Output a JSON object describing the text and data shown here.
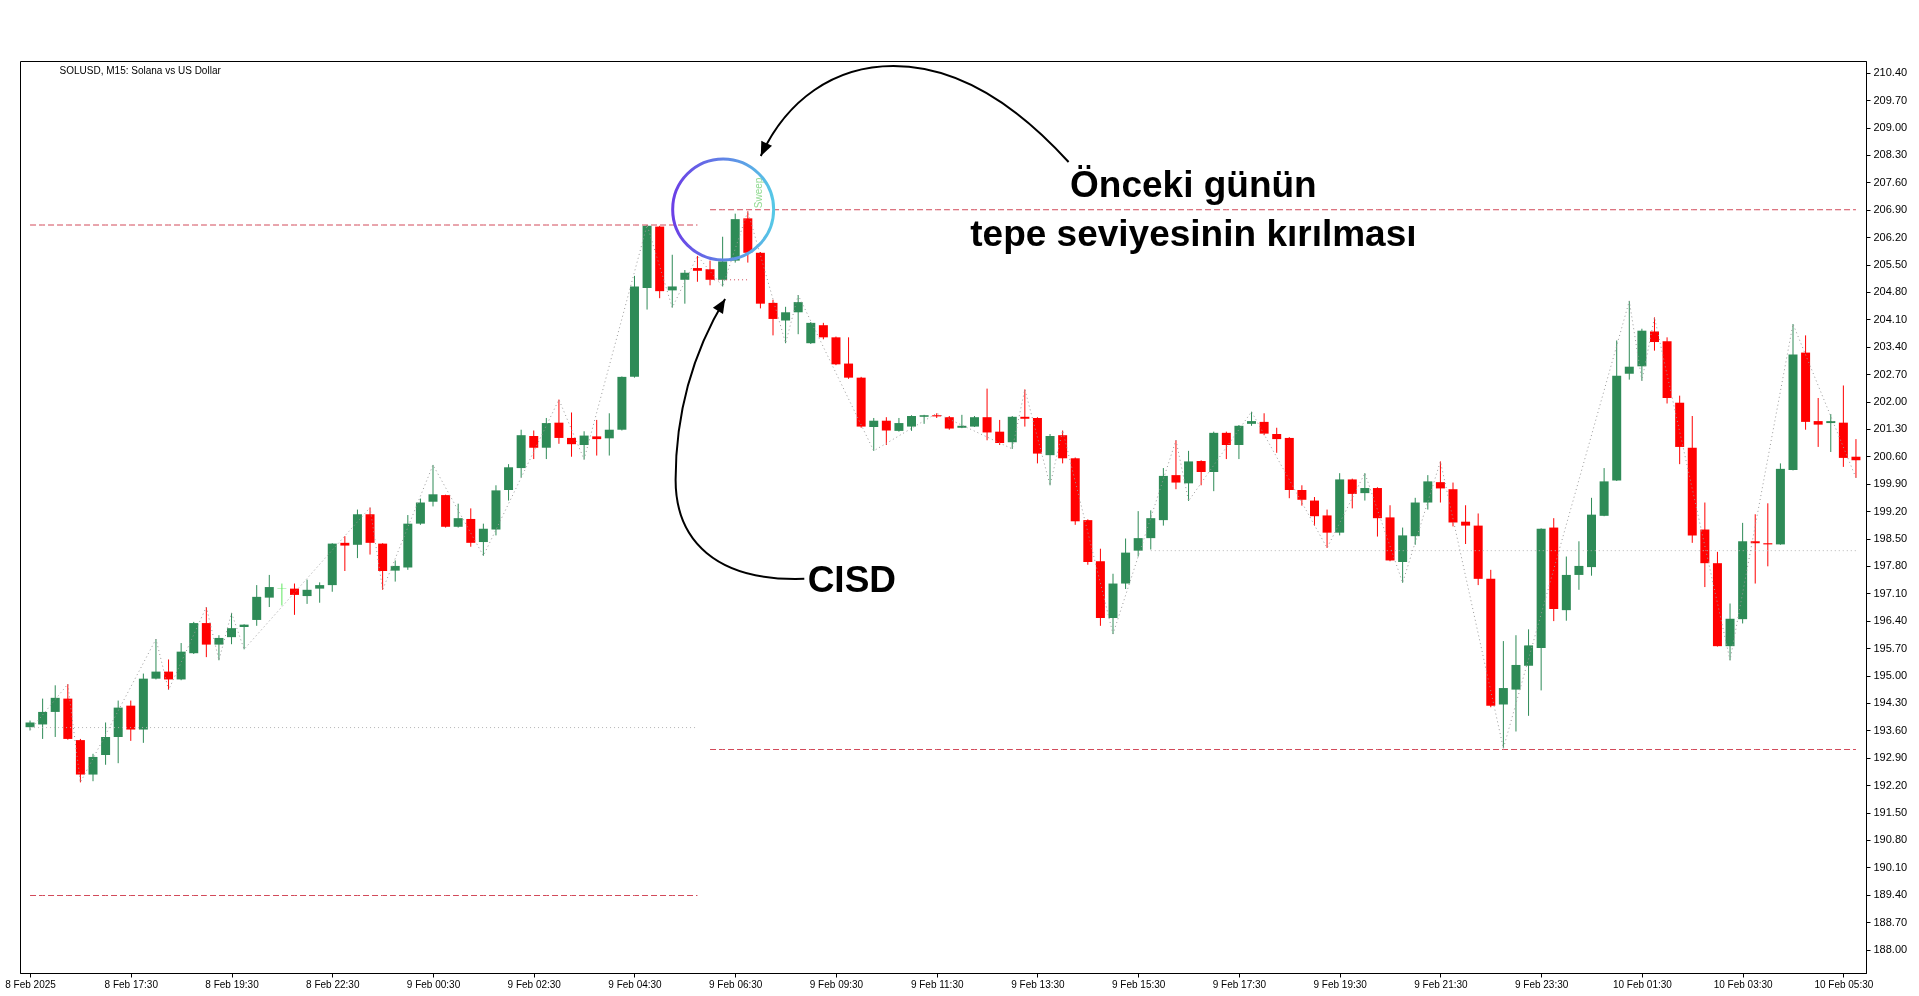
{
  "chart_data": {
    "type": "candlestick",
    "title": "SOLUSD, M15: Solana vs US Dollar",
    "annotations": [
      "Önceki günün\ntepe seviyesinin kırılması",
      "CISD",
      "Sweep"
    ],
    "categories": [
      "8 Feb 2025",
      null,
      null,
      null,
      null,
      null,
      null,
      null,
      "8 Feb 17:30",
      null,
      null,
      null,
      null,
      null,
      null,
      null,
      "8 Feb 19:30",
      null,
      null,
      null,
      null,
      null,
      null,
      null,
      "8 Feb 22:30",
      null,
      null,
      null,
      null,
      null,
      null,
      null,
      "9 Feb 00:30",
      null,
      null,
      null,
      null,
      null,
      null,
      null,
      "9 Feb 02:30",
      null,
      null,
      null,
      null,
      null,
      null,
      null,
      "9 Feb 04:30",
      null,
      null,
      null,
      null,
      null,
      null,
      null,
      "9 Feb 06:30",
      null,
      null,
      null,
      null,
      null,
      null,
      null,
      "9 Feb 09:30",
      null,
      null,
      null,
      null,
      null,
      null,
      null,
      "9 Feb 11:30",
      null,
      null,
      null,
      null,
      null,
      null,
      null,
      "9 Feb 13:30",
      null,
      null,
      null,
      null,
      null,
      null,
      null,
      "9 Feb 15:30",
      null,
      null,
      null,
      null,
      null,
      null,
      null,
      "9 Feb 17:30",
      null,
      null,
      null,
      null,
      null,
      null,
      null,
      "9 Feb 19:30",
      null,
      null,
      null,
      null,
      null,
      null,
      null,
      "9 Feb 21:30",
      null,
      null,
      null,
      null,
      null,
      null,
      null,
      "9 Feb 23:30",
      null,
      null,
      null,
      null,
      null,
      null,
      null,
      "10 Feb 01:30",
      null,
      null,
      null,
      null,
      null,
      null,
      null,
      "10 Feb 03:30",
      null,
      null,
      null,
      null,
      null,
      null,
      null,
      "10 Feb 05:30",
      null
    ],
    "ohlc": [
      [
        193.68,
        193.85,
        193.6,
        193.8
      ],
      [
        193.75,
        194.41,
        193.38,
        194.07
      ],
      [
        194.07,
        194.75,
        193.43,
        194.43
      ],
      [
        194.41,
        194.78,
        193.36,
        193.38
      ],
      [
        193.35,
        193.38,
        192.27,
        192.47
      ],
      [
        192.47,
        193.0,
        192.3,
        192.92
      ],
      [
        192.97,
        193.8,
        192.72,
        193.43
      ],
      [
        193.43,
        194.36,
        192.76,
        194.18
      ],
      [
        194.23,
        194.36,
        193.33,
        193.62
      ],
      [
        193.62,
        195.05,
        193.28,
        194.92
      ],
      [
        194.92,
        195.93,
        194.9,
        195.1
      ],
      [
        195.1,
        195.41,
        194.63,
        194.9
      ],
      [
        194.9,
        195.83,
        194.88,
        195.61
      ],
      [
        195.57,
        196.37,
        195.55,
        196.34
      ],
      [
        196.34,
        196.75,
        195.47,
        195.79
      ],
      [
        195.79,
        196.03,
        195.39,
        195.96
      ],
      [
        195.98,
        196.6,
        195.8,
        196.21
      ],
      [
        196.24,
        196.31,
        195.67,
        196.3
      ],
      [
        196.42,
        197.31,
        196.27,
        197.01
      ],
      [
        196.99,
        197.57,
        196.75,
        197.26
      ],
      [
        197.22,
        197.35,
        196.79,
        197.23
      ],
      [
        197.22,
        197.35,
        196.55,
        197.06
      ],
      [
        197.03,
        197.45,
        196.83,
        197.19
      ],
      [
        197.22,
        197.38,
        196.86,
        197.31
      ],
      [
        197.31,
        198.38,
        197.14,
        198.37
      ],
      [
        198.39,
        198.56,
        197.67,
        198.32
      ],
      [
        198.34,
        199.24,
        198.0,
        199.12
      ],
      [
        199.12,
        199.29,
        198.09,
        198.39
      ],
      [
        198.37,
        198.38,
        197.19,
        197.67
      ],
      [
        197.68,
        197.94,
        197.4,
        197.8
      ],
      [
        197.76,
        199.1,
        197.7,
        198.88
      ],
      [
        198.88,
        199.52,
        198.85,
        199.42
      ],
      [
        199.44,
        200.38,
        199.32,
        199.63
      ],
      [
        199.61,
        199.62,
        198.78,
        198.8
      ],
      [
        198.8,
        199.39,
        198.78,
        199.02
      ],
      [
        199.0,
        199.27,
        198.29,
        198.39
      ],
      [
        198.41,
        198.88,
        198.06,
        198.75
      ],
      [
        198.73,
        199.86,
        198.58,
        199.73
      ],
      [
        199.74,
        200.4,
        199.47,
        200.32
      ],
      [
        200.3,
        201.28,
        200.06,
        201.14
      ],
      [
        201.12,
        201.26,
        200.53,
        200.82
      ],
      [
        200.82,
        201.58,
        200.53,
        201.45
      ],
      [
        201.46,
        202.05,
        200.92,
        201.07
      ],
      [
        201.07,
        201.72,
        200.59,
        200.91
      ],
      [
        200.89,
        201.24,
        200.52,
        201.13
      ],
      [
        201.11,
        201.53,
        200.62,
        201.04
      ],
      [
        201.06,
        201.7,
        200.62,
        201.28
      ],
      [
        201.28,
        202.64,
        201.26,
        202.63
      ],
      [
        202.63,
        205.21,
        202.61,
        204.94
      ],
      [
        204.9,
        206.51,
        204.35,
        206.49
      ],
      [
        206.47,
        206.49,
        204.64,
        204.82
      ],
      [
        204.84,
        205.75,
        204.4,
        204.94
      ],
      [
        205.11,
        205.36,
        204.5,
        205.29
      ],
      [
        205.41,
        205.72,
        205.06,
        205.34
      ],
      [
        205.38,
        205.6,
        204.97,
        205.11
      ],
      [
        205.11,
        206.21,
        204.94,
        205.58
      ],
      [
        205.6,
        206.8,
        205.55,
        206.66
      ],
      [
        206.68,
        206.86,
        205.55,
        205.8
      ],
      [
        205.8,
        205.82,
        204.38,
        204.5
      ],
      [
        204.52,
        204.6,
        203.69,
        204.11
      ],
      [
        204.07,
        204.42,
        203.49,
        204.28
      ],
      [
        204.28,
        204.72,
        203.72,
        204.54
      ],
      [
        203.49,
        204.03,
        203.47,
        204.01
      ],
      [
        203.95,
        204.01,
        203.59,
        203.64
      ],
      [
        203.64,
        203.66,
        202.93,
        202.95
      ],
      [
        202.97,
        203.64,
        202.58,
        202.61
      ],
      [
        202.61,
        202.63,
        201.33,
        201.36
      ],
      [
        201.35,
        201.58,
        200.74,
        201.51
      ],
      [
        201.51,
        201.6,
        200.89,
        201.26
      ],
      [
        201.25,
        201.58,
        201.23,
        201.45
      ],
      [
        201.36,
        201.65,
        201.25,
        201.63
      ],
      [
        201.61,
        201.66,
        201.43,
        201.65
      ],
      [
        201.65,
        201.7,
        201.58,
        201.62
      ],
      [
        201.6,
        201.63,
        201.28,
        201.31
      ],
      [
        201.33,
        201.66,
        201.32,
        201.38
      ],
      [
        201.36,
        201.63,
        201.35,
        201.6
      ],
      [
        201.6,
        202.33,
        201.01,
        201.21
      ],
      [
        201.23,
        201.53,
        200.89,
        200.94
      ],
      [
        200.96,
        201.63,
        200.79,
        201.61
      ],
      [
        201.61,
        202.31,
        201.36,
        201.56
      ],
      [
        201.58,
        201.6,
        200.42,
        200.67
      ],
      [
        200.63,
        201.17,
        199.86,
        201.12
      ],
      [
        201.14,
        201.26,
        200.42,
        200.55
      ],
      [
        200.55,
        200.57,
        198.85,
        198.94
      ],
      [
        198.97,
        198.99,
        197.83,
        197.9
      ],
      [
        197.92,
        198.24,
        196.27,
        196.47
      ],
      [
        196.47,
        197.6,
        196.06,
        197.35
      ],
      [
        197.35,
        198.5,
        197.21,
        198.14
      ],
      [
        198.19,
        199.2,
        198.04,
        198.51
      ],
      [
        198.51,
        199.22,
        198.22,
        199.02
      ],
      [
        198.97,
        200.3,
        198.83,
        200.1
      ],
      [
        200.12,
        201.01,
        199.76,
        199.93
      ],
      [
        199.91,
        200.74,
        199.46,
        200.47
      ],
      [
        200.48,
        200.5,
        199.86,
        200.2
      ],
      [
        200.2,
        201.23,
        199.71,
        201.2
      ],
      [
        201.2,
        201.23,
        200.53,
        200.89
      ],
      [
        200.89,
        201.4,
        200.53,
        201.38
      ],
      [
        201.43,
        201.74,
        201.38,
        201.5
      ],
      [
        201.48,
        201.7,
        201.14,
        201.18
      ],
      [
        201.17,
        201.33,
        200.69,
        201.04
      ],
      [
        201.07,
        201.09,
        199.53,
        199.74
      ],
      [
        199.74,
        199.86,
        199.34,
        199.49
      ],
      [
        199.47,
        199.56,
        198.83,
        199.07
      ],
      [
        199.09,
        199.24,
        198.26,
        198.65
      ],
      [
        198.65,
        200.17,
        198.58,
        200.01
      ],
      [
        200.01,
        200.03,
        199.27,
        199.64
      ],
      [
        199.66,
        200.17,
        199.47,
        199.79
      ],
      [
        199.79,
        199.81,
        198.55,
        199.02
      ],
      [
        199.04,
        199.35,
        197.92,
        197.94
      ],
      [
        197.9,
        198.78,
        197.37,
        198.58
      ],
      [
        198.56,
        199.54,
        198.34,
        199.42
      ],
      [
        199.42,
        200.12,
        199.24,
        199.96
      ],
      [
        199.94,
        200.47,
        199.42,
        199.78
      ],
      [
        199.76,
        199.93,
        198.81,
        198.91
      ],
      [
        198.93,
        199.35,
        198.36,
        198.83
      ],
      [
        198.83,
        199.14,
        197.31,
        197.47
      ],
      [
        197.47,
        197.7,
        194.19,
        194.23
      ],
      [
        194.26,
        195.88,
        193.14,
        194.68
      ],
      [
        194.64,
        196.03,
        193.57,
        195.27
      ],
      [
        195.25,
        196.18,
        193.97,
        195.77
      ],
      [
        195.7,
        198.76,
        194.62,
        198.75
      ],
      [
        198.78,
        199.02,
        196.39,
        196.7
      ],
      [
        196.67,
        198.04,
        196.4,
        197.57
      ],
      [
        197.57,
        198.43,
        197.19,
        197.8
      ],
      [
        197.77,
        199.54,
        197.55,
        199.11
      ],
      [
        199.08,
        200.3,
        199.07,
        199.96
      ],
      [
        199.98,
        203.56,
        199.97,
        202.66
      ],
      [
        202.71,
        204.57,
        202.56,
        202.89
      ],
      [
        202.9,
        203.86,
        202.53,
        203.81
      ],
      [
        203.79,
        204.15,
        203.3,
        203.52
      ],
      [
        203.54,
        203.64,
        201.95,
        202.09
      ],
      [
        201.97,
        202.15,
        200.4,
        200.84
      ],
      [
        200.82,
        201.63,
        198.39,
        198.58
      ],
      [
        198.73,
        199.42,
        197.26,
        197.87
      ],
      [
        197.87,
        198.16,
        195.74,
        195.75
      ],
      [
        195.75,
        196.84,
        195.39,
        196.45
      ],
      [
        196.44,
        198.9,
        196.33,
        198.43
      ],
      [
        198.43,
        199.12,
        197.35,
        198.38
      ],
      [
        198.38,
        199.4,
        197.79,
        198.35
      ],
      [
        198.35,
        200.42,
        198.34,
        200.28
      ],
      [
        200.25,
        203.98,
        200.24,
        203.2
      ],
      [
        203.25,
        203.69,
        201.28,
        201.48
      ],
      [
        201.5,
        202.09,
        200.84,
        201.41
      ],
      [
        201.45,
        201.68,
        200.71,
        201.5
      ],
      [
        201.46,
        202.41,
        200.33,
        200.56
      ],
      [
        200.59,
        201.04,
        200.05,
        200.5
      ]
    ],
    "colors": [
      "#2e8b57",
      "#2e8b57",
      "#2e8b57",
      "#ff0000",
      "#ff0000",
      "#2e8b57",
      "#2e8b57",
      "#2e8b57",
      "#ff0000",
      "#2e8b57",
      "#2e8b57",
      "#ff0000",
      "#2e8b57",
      "#2e8b57",
      "#ff0000",
      "#2e8b57",
      "#2e8b57",
      "#2e8b57",
      "#2e8b57",
      "#2e8b57",
      "#5ee65e",
      "#ff0000",
      "#2e8b57",
      "#2e8b57",
      "#2e8b57",
      "#ff0000",
      "#2e8b57",
      "#ff0000",
      "#ff0000",
      "#2e8b57",
      "#2e8b57",
      "#2e8b57",
      "#2e8b57",
      "#ff0000",
      "#2e8b57",
      "#ff0000",
      "#2e8b57",
      "#2e8b57",
      "#2e8b57",
      "#2e8b57",
      "#ff0000",
      "#2e8b57",
      "#ff0000",
      "#ff0000",
      "#2e8b57",
      "#ff0000",
      "#2e8b57",
      "#2e8b57",
      "#2e8b57",
      "#2e8b57",
      "#ff0000",
      "#2e8b57",
      "#2e8b57",
      "#ff0000",
      "#ff0000",
      "#2e8b57",
      "#2e8b57",
      "#ff0000",
      "#ff0000",
      "#ff0000",
      "#2e8b57",
      "#2e8b57",
      "#2e8b57",
      "#ff0000",
      "#ff0000",
      "#ff0000",
      "#ff0000",
      "#2e8b57",
      "#ff0000",
      "#2e8b57",
      "#2e8b57",
      "#2e8b57",
      "#ff0000",
      "#ff0000",
      "#2e8b57",
      "#2e8b57",
      "#ff0000",
      "#ff0000",
      "#2e8b57",
      "#ff0000",
      "#ff0000",
      "#2e8b57",
      "#ff0000",
      "#ff0000",
      "#ff0000",
      "#ff0000",
      "#2e8b57",
      "#2e8b57",
      "#2e8b57",
      "#2e8b57",
      "#2e8b57",
      "#ff0000",
      "#2e8b57",
      "#ff0000",
      "#2e8b57",
      "#ff0000",
      "#2e8b57",
      "#2e8b57",
      "#ff0000",
      "#ff0000",
      "#ff0000",
      "#ff0000",
      "#ff0000",
      "#ff0000",
      "#2e8b57",
      "#ff0000",
      "#2e8b57",
      "#ff0000",
      "#ff0000",
      "#2e8b57",
      "#2e8b57",
      "#2e8b57",
      "#ff0000",
      "#ff0000",
      "#ff0000",
      "#ff0000",
      "#ff0000",
      "#2e8b57",
      "#2e8b57",
      "#2e8b57",
      "#2e8b57",
      "#ff0000",
      "#2e8b57",
      "#2e8b57",
      "#2e8b57",
      "#2e8b57",
      "#2e8b57",
      "#2e8b57",
      "#2e8b57",
      "#ff0000",
      "#ff0000",
      "#ff0000",
      "#ff0000",
      "#ff0000",
      "#ff0000",
      "#2e8b57",
      "#2e8b57",
      "#ff0000",
      "#ff0000",
      "#2e8b57",
      "#2e8b57",
      "#ff0000",
      "#ff0000",
      "#2e8b57",
      "#ff0000",
      "#ff0000"
    ],
    "series": [
      {
        "type": "line",
        "color": "#d24a5a",
        "line_style": "dashed",
        "values": [
          206.51,
          206.51,
          206.51,
          206.51,
          206.51,
          206.51,
          206.51,
          206.51,
          206.51,
          206.51,
          206.51,
          206.51,
          206.51,
          206.51,
          206.51,
          206.51,
          206.51,
          206.51,
          206.51,
          206.51,
          206.51,
          206.51,
          206.51,
          206.51,
          206.51,
          206.51,
          206.51,
          206.51,
          206.51,
          206.51,
          206.51,
          206.51,
          206.51,
          206.51,
          206.51,
          206.51,
          206.51,
          206.51,
          206.51,
          206.51,
          206.51,
          206.51,
          206.51,
          206.51,
          206.51,
          206.51,
          206.51,
          206.51,
          206.51,
          206.51,
          206.51,
          206.51,
          206.51,
          206.51,
          null,
          null,
          null,
          null,
          null,
          null,
          null,
          null,
          null,
          null,
          null,
          null,
          null,
          null,
          null,
          null,
          null,
          null,
          null,
          null,
          null,
          null,
          null,
          null,
          null,
          null,
          null,
          null,
          null,
          null,
          null,
          null,
          null,
          null,
          null,
          null,
          null,
          null,
          null,
          null,
          null,
          null,
          null,
          null,
          null,
          null,
          null,
          null,
          null,
          null,
          null,
          null,
          null,
          null,
          null,
          null,
          null,
          null,
          null,
          null,
          null,
          null,
          null,
          null,
          null,
          null,
          null,
          null,
          null,
          null,
          null,
          null,
          null,
          null,
          null,
          null,
          null,
          null,
          null,
          null,
          null,
          null,
          null,
          null,
          null,
          null,
          null,
          null,
          null,
          null,
          null,
          null
        ]
      },
      {
        "type": "line",
        "color": "#d24a5a",
        "line_style": "dashed",
        "values": [
          189.38,
          189.38,
          189.38,
          189.38,
          189.38,
          189.38,
          189.38,
          189.38,
          189.38,
          189.38,
          189.38,
          189.38,
          189.38,
          189.38,
          189.38,
          189.38,
          189.38,
          189.38,
          189.38,
          189.38,
          189.38,
          189.38,
          189.38,
          189.38,
          189.38,
          189.38,
          189.38,
          189.38,
          189.38,
          189.38,
          189.38,
          189.38,
          189.38,
          189.38,
          189.38,
          189.38,
          189.38,
          189.38,
          189.38,
          189.38,
          189.38,
          189.38,
          189.38,
          189.38,
          189.38,
          189.38,
          189.38,
          189.38,
          189.38,
          189.38,
          189.38,
          189.38,
          189.38,
          189.38,
          null,
          null,
          null,
          null,
          null,
          null,
          null,
          null,
          null,
          null,
          null,
          null,
          null,
          null,
          null,
          null,
          null,
          null,
          null,
          null,
          null,
          null,
          null,
          null,
          null,
          null,
          null,
          null,
          null,
          null,
          null,
          null,
          null,
          null,
          null,
          null,
          null,
          null,
          null,
          null,
          null,
          null,
          null,
          null,
          null,
          null,
          null,
          null,
          null,
          null,
          null,
          null,
          null,
          null,
          null,
          null,
          null,
          null,
          null,
          null,
          null,
          null,
          null,
          null,
          null,
          null,
          null,
          null,
          null,
          null,
          null,
          null,
          null,
          null,
          null,
          null,
          null,
          null,
          null,
          null,
          null,
          null,
          null,
          null,
          null,
          null,
          null,
          null,
          null,
          null,
          null,
          null
        ]
      },
      {
        "type": "line",
        "color": "#b4b4b4",
        "line_style": "dotted",
        "values": [
          193.67,
          193.67,
          193.67,
          193.67,
          193.67,
          193.67,
          193.67,
          193.67,
          193.67,
          193.67,
          193.67,
          193.67,
          193.67,
          193.67,
          193.67,
          193.67,
          193.67,
          193.67,
          193.67,
          193.67,
          193.67,
          193.67,
          193.67,
          193.67,
          193.67,
          193.67,
          193.67,
          193.67,
          193.67,
          193.67,
          193.67,
          193.67,
          193.67,
          193.67,
          193.67,
          193.67,
          193.67,
          193.67,
          193.67,
          193.67,
          193.67,
          193.67,
          193.67,
          193.67,
          193.67,
          193.67,
          193.67,
          193.67,
          193.67,
          193.67,
          193.67,
          193.67,
          193.67,
          193.67,
          null,
          null,
          null,
          null,
          null,
          null,
          null,
          null,
          null,
          null,
          null,
          null,
          null,
          null,
          null,
          null,
          null,
          null,
          null,
          null,
          null,
          null,
          null,
          null,
          null,
          null,
          null,
          null,
          null,
          null,
          null,
          null,
          null,
          null,
          null,
          null,
          null,
          null,
          null,
          null,
          null,
          null,
          null,
          null,
          null,
          null,
          null,
          null,
          null,
          null,
          null,
          null,
          null,
          null,
          null,
          null,
          null,
          null,
          null,
          null,
          null,
          null,
          null,
          null,
          null,
          null,
          null,
          null,
          null,
          null,
          null,
          null,
          null,
          null,
          null,
          null,
          null,
          null,
          null,
          null,
          null,
          null,
          null,
          null,
          null,
          null,
          null,
          null,
          null,
          null,
          null,
          null
        ]
      },
      {
        "type": "line",
        "color": "#d24a5a",
        "line_style": "dashed",
        "values": [
          null,
          null,
          null,
          null,
          null,
          null,
          null,
          null,
          null,
          null,
          null,
          null,
          null,
          null,
          null,
          null,
          null,
          null,
          null,
          null,
          null,
          null,
          null,
          null,
          null,
          null,
          null,
          null,
          null,
          null,
          null,
          null,
          null,
          null,
          null,
          null,
          null,
          null,
          null,
          null,
          null,
          null,
          null,
          null,
          null,
          null,
          null,
          null,
          null,
          null,
          null,
          null,
          null,
          null,
          206.9,
          206.9,
          206.9,
          206.9,
          206.9,
          206.9,
          206.9,
          206.9,
          206.9,
          206.9,
          206.9,
          206.9,
          206.9,
          206.9,
          206.9,
          206.9,
          206.9,
          206.9,
          206.9,
          206.9,
          206.9,
          206.9,
          206.9,
          206.9,
          206.9,
          206.9,
          206.9,
          206.9,
          206.9,
          206.9,
          206.9,
          206.9,
          206.9,
          206.9,
          206.9,
          206.9,
          206.9,
          206.9,
          206.9,
          206.9,
          206.9,
          206.9,
          206.9,
          206.9,
          206.9,
          206.9,
          206.9,
          206.9,
          206.9,
          206.9,
          206.9,
          206.9,
          206.9,
          206.9,
          206.9,
          206.9,
          206.9,
          206.9,
          206.9,
          206.9,
          206.9,
          206.9,
          206.9,
          206.9,
          206.9,
          206.9,
          206.9,
          206.9,
          206.9,
          206.9,
          206.9,
          206.9,
          206.9,
          206.9,
          206.9,
          206.9,
          206.9,
          206.9,
          206.9,
          206.9,
          206.9,
          206.9,
          206.9,
          206.9,
          206.9,
          206.9,
          206.9,
          206.9,
          206.9,
          206.9,
          206.9,
          206.9
        ]
      },
      {
        "type": "line",
        "color": "#d24a5a",
        "line_style": "dashed",
        "values": [
          null,
          null,
          null,
          null,
          null,
          null,
          null,
          null,
          null,
          null,
          null,
          null,
          null,
          null,
          null,
          null,
          null,
          null,
          null,
          null,
          null,
          null,
          null,
          null,
          null,
          null,
          null,
          null,
          null,
          null,
          null,
          null,
          null,
          null,
          null,
          null,
          null,
          null,
          null,
          null,
          null,
          null,
          null,
          null,
          null,
          null,
          null,
          null,
          null,
          null,
          null,
          null,
          null,
          null,
          193.11,
          193.11,
          193.11,
          193.11,
          193.11,
          193.11,
          193.11,
          193.11,
          193.11,
          193.11,
          193.11,
          193.11,
          193.11,
          193.11,
          193.11,
          193.11,
          193.11,
          193.11,
          193.11,
          193.11,
          193.11,
          193.11,
          193.11,
          193.11,
          193.11,
          193.11,
          193.11,
          193.11,
          193.11,
          193.11,
          193.11,
          193.11,
          193.11,
          193.11,
          193.11,
          193.11,
          193.11,
          193.11,
          193.11,
          193.11,
          193.11,
          193.11,
          193.11,
          193.11,
          193.11,
          193.11,
          193.11,
          193.11,
          193.11,
          193.11,
          193.11,
          193.11,
          193.11,
          193.11,
          193.11,
          193.11,
          193.11,
          193.11,
          193.11,
          193.11,
          193.11,
          193.11,
          193.11,
          193.11,
          193.11,
          193.11,
          193.11,
          193.11,
          193.11,
          193.11,
          193.11,
          193.11,
          193.11,
          193.11,
          193.11,
          193.11,
          193.11,
          193.11,
          193.11,
          193.11,
          193.11,
          193.11,
          193.11,
          193.11,
          193.11,
          193.11,
          193.11,
          193.11,
          193.11,
          193.11,
          193.11,
          193.11
        ]
      },
      {
        "type": "line",
        "color": "#b4b4b4",
        "line_style": "dotted",
        "values": [
          null,
          null,
          null,
          null,
          null,
          null,
          null,
          null,
          null,
          null,
          null,
          null,
          null,
          null,
          null,
          null,
          null,
          null,
          null,
          null,
          null,
          null,
          null,
          null,
          null,
          null,
          null,
          null,
          null,
          null,
          null,
          null,
          null,
          null,
          null,
          null,
          null,
          null,
          null,
          null,
          null,
          null,
          null,
          null,
          null,
          null,
          null,
          null,
          null,
          null,
          null,
          null,
          null,
          null,
          null,
          null,
          null,
          null,
          null,
          null,
          null,
          null,
          null,
          null,
          null,
          null,
          null,
          null,
          null,
          null,
          null,
          null,
          null,
          null,
          null,
          null,
          null,
          null,
          null,
          null,
          null,
          null,
          null,
          null,
          null,
          null,
          null,
          null,
          null,
          198.19,
          198.19,
          198.19,
          198.19,
          198.19,
          198.19,
          198.19,
          198.19,
          198.19,
          198.19,
          198.19,
          198.19,
          198.19,
          198.19,
          198.19,
          198.19,
          198.19,
          198.19,
          198.19,
          198.19,
          198.19,
          198.19,
          198.19,
          198.19,
          198.19,
          198.19,
          198.19,
          198.19,
          198.19,
          198.19,
          198.19,
          198.19,
          198.19,
          198.19,
          198.19,
          198.19,
          198.19,
          198.19,
          198.19,
          198.19,
          198.19,
          198.19,
          198.19,
          198.19,
          198.19,
          198.19,
          198.19,
          198.19,
          198.19,
          198.19,
          198.19,
          198.19,
          198.19,
          198.19,
          198.19,
          198.19,
          198.19
        ]
      },
      {
        "type": "line",
        "color": "#d24a5a",
        "line_style": "dotted",
        "values": [
          null,
          null,
          null,
          null,
          null,
          null,
          null,
          null,
          null,
          null,
          null,
          null,
          null,
          null,
          null,
          null,
          null,
          null,
          null,
          null,
          null,
          null,
          null,
          null,
          null,
          null,
          null,
          null,
          null,
          null,
          null,
          null,
          null,
          null,
          null,
          null,
          null,
          null,
          null,
          null,
          null,
          null,
          null,
          null,
          null,
          null,
          null,
          null,
          null,
          null,
          null,
          null,
          null,
          null,
          205.11,
          205.11,
          205.11,
          205.11,
          null,
          null,
          null,
          null,
          null,
          null,
          null,
          null,
          null,
          null,
          null,
          null,
          null,
          null,
          null,
          null,
          null,
          null,
          null,
          null,
          null,
          null,
          null,
          null,
          null,
          null,
          null,
          null,
          null,
          null,
          null,
          null,
          null,
          null,
          null,
          null,
          null,
          null,
          null,
          null,
          null,
          null,
          null,
          null,
          null,
          null,
          null,
          null,
          null,
          null,
          null,
          null,
          null,
          null,
          null,
          null,
          null,
          null,
          null,
          null,
          null,
          null,
          null,
          null,
          null,
          null,
          null,
          null,
          null,
          null,
          null,
          null,
          null,
          null,
          null,
          null,
          null,
          null,
          null,
          null,
          null,
          null,
          null,
          null,
          null,
          null,
          null,
          null
        ]
      },
      {
        "type": "line",
        "color": "#9a9a9a",
        "line_style": "dotted",
        "values": [
          193.6,
          null,
          null,
          194.78,
          192.27,
          null,
          null,
          null,
          null,
          null,
          195.93,
          194.63,
          null,
          null,
          196.75,
          195.39,
          196.6,
          195.67,
          null,
          null,
          null,
          null,
          null,
          null,
          null,
          null,
          null,
          199.29,
          197.19,
          null,
          null,
          null,
          200.38,
          null,
          null,
          null,
          198.06,
          null,
          null,
          null,
          null,
          null,
          202.05,
          null,
          200.52,
          null,
          null,
          null,
          null,
          206.51,
          null,
          204.4,
          null,
          205.72,
          null,
          204.94,
          null,
          206.86,
          null,
          null,
          203.49,
          204.72,
          null,
          null,
          null,
          null,
          null,
          200.74,
          null,
          null,
          null,
          null,
          201.7,
          null,
          null,
          null,
          null,
          null,
          200.79,
          202.31,
          null,
          199.86,
          201.26,
          null,
          null,
          null,
          196.06,
          null,
          null,
          null,
          null,
          201.01,
          199.46,
          null,
          null,
          null,
          null,
          201.74,
          null,
          null,
          null,
          null,
          null,
          198.26,
          null,
          null,
          200.17,
          null,
          null,
          197.37,
          null,
          null,
          200.47,
          null,
          null,
          null,
          null,
          193.14,
          null,
          null,
          null,
          null,
          null,
          null,
          null,
          null,
          null,
          204.57,
          202.53,
          204.15,
          null,
          null,
          null,
          null,
          null,
          195.39,
          null,
          null,
          null,
          null,
          203.98,
          null,
          null,
          null,
          null,
          200.05
        ]
      }
    ],
    "ylim": [
      187.4,
      210.7
    ],
    "yticks": [
      {
        "value": 188,
        "label": "188.00"
      },
      {
        "value": 188.7,
        "label": "188.70"
      },
      {
        "value": 189.4,
        "label": "189.40"
      },
      {
        "value": 190.1,
        "label": "190.10"
      },
      {
        "value": 190.8,
        "label": "190.80"
      },
      {
        "value": 191.5,
        "label": "191.50"
      },
      {
        "value": 192.2,
        "label": "192.20"
      },
      {
        "value": 192.9,
        "label": "192.90"
      },
      {
        "value": 193.6,
        "label": "193.60"
      },
      {
        "value": 194.3,
        "label": "194.30"
      },
      {
        "value": 195,
        "label": "195.00"
      },
      {
        "value": 195.7,
        "label": "195.70"
      },
      {
        "value": 196.4,
        "label": "196.40"
      },
      {
        "value": 197.1,
        "label": "197.10"
      },
      {
        "value": 197.8,
        "label": "197.80"
      },
      {
        "value": 198.5,
        "label": "198.50"
      },
      {
        "value": 199.2,
        "label": "199.20"
      },
      {
        "value": 199.9,
        "label": "199.90"
      },
      {
        "value": 200.6,
        "label": "200.60"
      },
      {
        "value": 201.3,
        "label": "201.30"
      },
      {
        "value": 202,
        "label": "202.00"
      },
      {
        "value": 202.7,
        "label": "202.70"
      },
      {
        "value": 203.4,
        "label": "203.40"
      },
      {
        "value": 204.1,
        "label": "204.10"
      },
      {
        "value": 204.8,
        "label": "204.80"
      },
      {
        "value": 205.5,
        "label": "205.50"
      },
      {
        "value": 206.2,
        "label": "206.20"
      },
      {
        "value": 206.9,
        "label": "206.90"
      },
      {
        "value": 207.6,
        "label": "207.60"
      },
      {
        "value": 208.3,
        "label": "208.30"
      },
      {
        "value": 209,
        "label": "209.00"
      },
      {
        "value": 209.7,
        "label": "209.70"
      },
      {
        "value": 210.4,
        "label": "210.40"
      }
    ]
  }
}
